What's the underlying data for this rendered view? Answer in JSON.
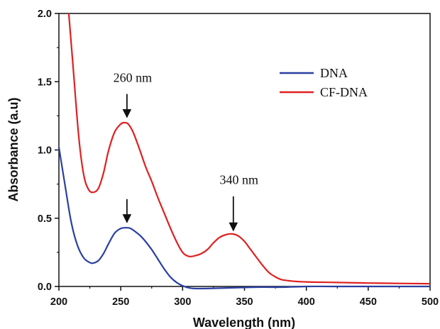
{
  "chart_data": {
    "type": "line",
    "title": "",
    "xlabel": "Wavelength (nm)",
    "ylabel": "Absorbance (a.u)",
    "xlim": [
      200,
      500
    ],
    "ylim": [
      0.0,
      2.0
    ],
    "xticks": [
      200,
      250,
      300,
      350,
      400,
      450,
      500
    ],
    "yticks": [
      0.0,
      0.5,
      1.0,
      1.5,
      2.0
    ],
    "xtick_labels": [
      "200",
      "250",
      "300",
      "350",
      "400",
      "450",
      "500"
    ],
    "ytick_labels": [
      "0.0",
      "0.5",
      "1.0",
      "1.5",
      "2.0"
    ],
    "grid": false,
    "legend_position": "top-right",
    "series": [
      {
        "name": "DNA",
        "color": "#2b3fa0",
        "x": [
          200,
          205,
          210,
          215,
          220,
          225,
          228,
          232,
          236,
          240,
          245,
          250,
          255,
          258,
          262,
          266,
          270,
          275,
          280,
          285,
          290,
          295,
          300,
          305,
          310,
          320,
          340,
          360,
          380,
          400,
          420,
          450,
          480,
          500
        ],
        "y": [
          1.02,
          0.74,
          0.47,
          0.3,
          0.21,
          0.175,
          0.172,
          0.19,
          0.24,
          0.31,
          0.39,
          0.425,
          0.43,
          0.425,
          0.4,
          0.37,
          0.33,
          0.27,
          0.2,
          0.13,
          0.07,
          0.03,
          0.005,
          -0.01,
          -0.015,
          -0.015,
          -0.01,
          -0.005,
          -0.005,
          0.0,
          0.0,
          0.0,
          0.0,
          0.0
        ]
      },
      {
        "name": "CF-DNA",
        "color": "#e02020",
        "x": [
          208,
          212,
          216,
          220,
          224,
          228,
          232,
          236,
          240,
          245,
          250,
          253,
          256,
          260,
          265,
          270,
          275,
          280,
          285,
          290,
          295,
          300,
          305,
          310,
          315,
          320,
          325,
          330,
          335,
          340,
          345,
          350,
          355,
          360,
          365,
          370,
          375,
          380,
          390,
          400,
          420,
          450,
          480,
          500
        ],
        "y": [
          2.0,
          1.55,
          1.1,
          0.82,
          0.71,
          0.69,
          0.72,
          0.83,
          0.99,
          1.13,
          1.19,
          1.2,
          1.19,
          1.13,
          1.01,
          0.88,
          0.77,
          0.65,
          0.54,
          0.43,
          0.33,
          0.25,
          0.22,
          0.225,
          0.24,
          0.27,
          0.32,
          0.36,
          0.38,
          0.385,
          0.37,
          0.33,
          0.27,
          0.21,
          0.15,
          0.1,
          0.07,
          0.05,
          0.038,
          0.033,
          0.03,
          0.025,
          0.022,
          0.02
        ]
      }
    ],
    "annotations": [
      {
        "text": "260 nm",
        "x": 255,
        "y": 1.5,
        "arrow_from_y": 1.41,
        "arrow_to_y": 1.24
      },
      {
        "text": "",
        "x": 255,
        "y": 0.0,
        "arrow_from_y": 0.64,
        "arrow_to_y": 0.47
      },
      {
        "text": "340 nm",
        "x": 341,
        "y": 0.75,
        "arrow_from_y": 0.66,
        "arrow_to_y": 0.41
      }
    ]
  }
}
